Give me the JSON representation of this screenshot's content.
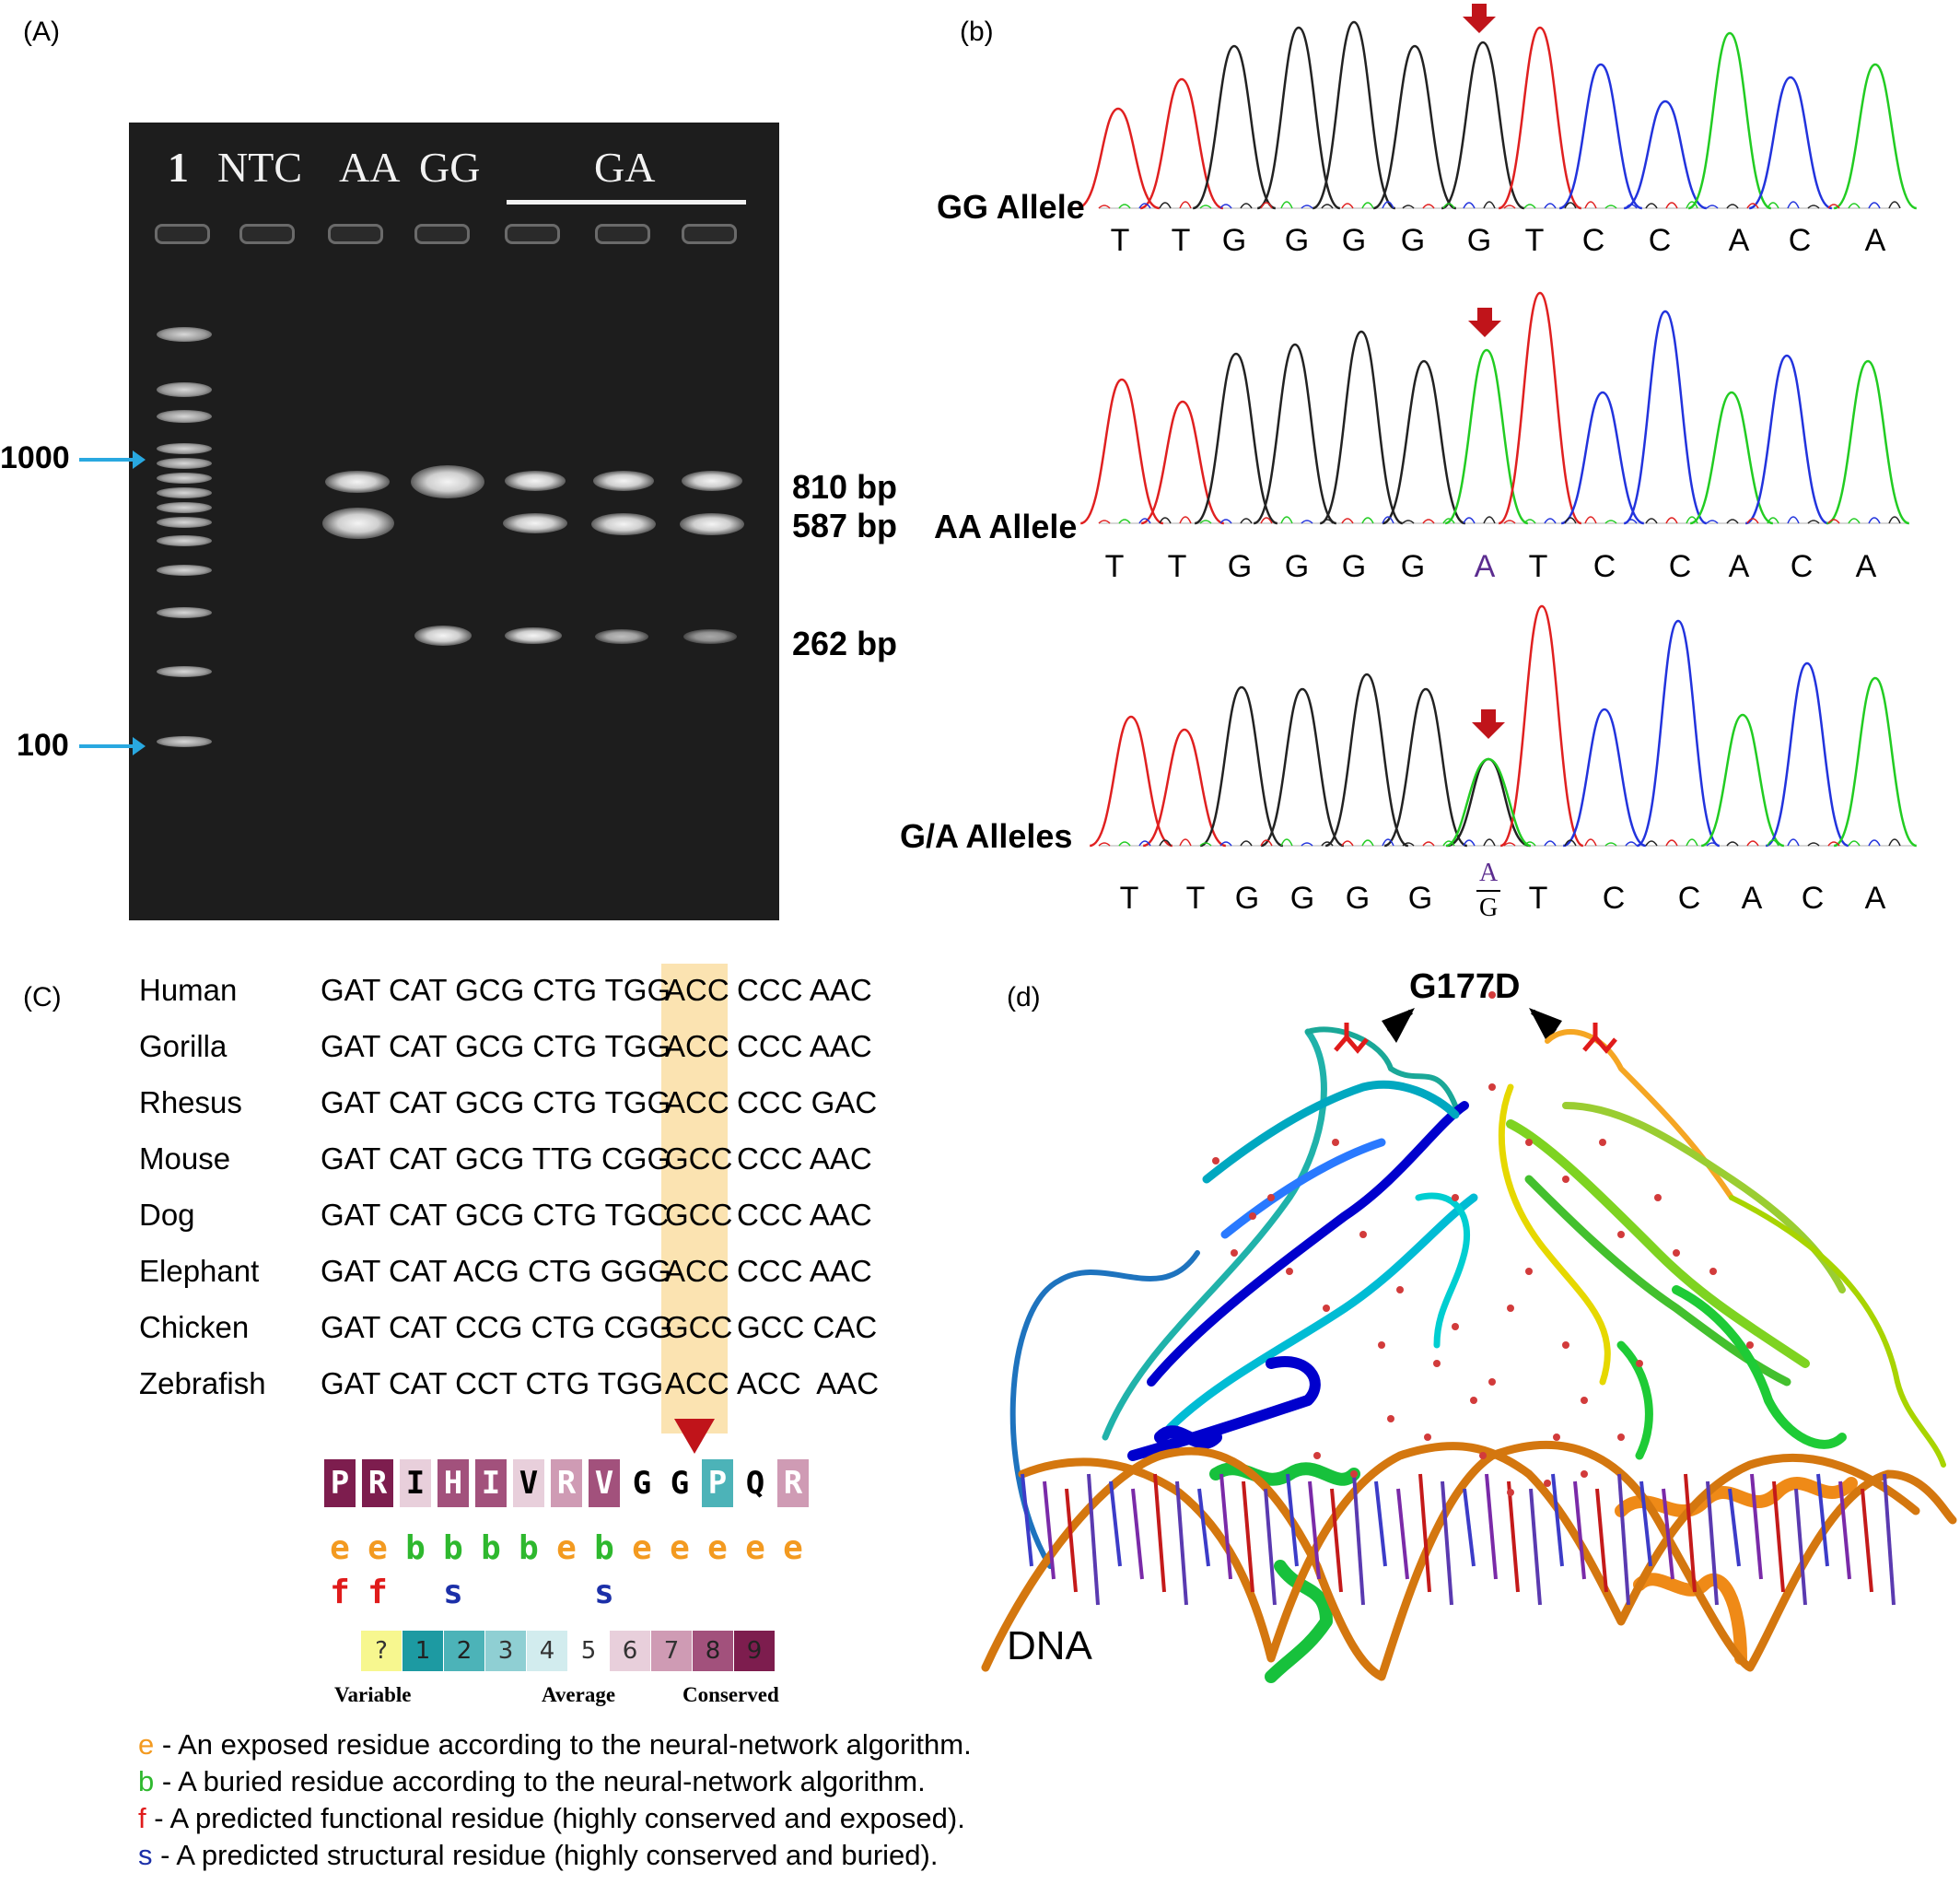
{
  "panelA": {
    "label": "(A)",
    "lanes": [
      "1",
      "NTC",
      "AA",
      "GG",
      "GA"
    ],
    "markers": [
      "1000",
      "100"
    ],
    "band_sizes": [
      "810 bp",
      "587 bp",
      "262 bp"
    ]
  },
  "panelB": {
    "label": "(b)",
    "traces": [
      {
        "allele": "GG Allele",
        "bases": [
          "T",
          "T",
          "G",
          "G",
          "G",
          "G",
          "G",
          "T",
          "C",
          "C",
          "A",
          "C",
          "A"
        ]
      },
      {
        "allele": "AA Allele",
        "bases": [
          "T",
          "T",
          "G",
          "G",
          "G",
          "G",
          "A",
          "T",
          "C",
          "C",
          "A",
          "C",
          "A"
        ]
      },
      {
        "allele": "G/A Alleles",
        "bases": [
          "T",
          "T",
          "G",
          "G",
          "G",
          "G",
          "T",
          "C",
          "C",
          "A",
          "C",
          "A"
        ],
        "het_top": "A",
        "het_bottom": "G"
      }
    ],
    "trace_colors": {
      "A": "#22cc22",
      "C": "#2233dd",
      "G": "#222222",
      "T": "#e02020"
    },
    "marker_color": "#c0141a"
  },
  "panelC": {
    "label": "(C)",
    "alignment": [
      {
        "species": "Human",
        "codons": "GAT CAT GCG CTG TGG",
        "hl": "ACC",
        "tail": "CCC AAC"
      },
      {
        "species": "Gorilla",
        "codons": "GAT CAT GCG CTG TGG",
        "hl": "ACC",
        "tail": "CCC AAC"
      },
      {
        "species": "Rhesus",
        "codons": "GAT CAT GCG CTG TGG",
        "hl": "ACC",
        "tail": "CCC GAC"
      },
      {
        "species": "Mouse",
        "codons": "GAT CAT GCG TTG CGG",
        "hl": "GCC",
        "tail": "CCC AAC"
      },
      {
        "species": "Dog",
        "codons": "GAT CAT GCG CTG TGC",
        "hl": "GCC",
        "tail": "CCC AAC"
      },
      {
        "species": "Elephant",
        "codons": "GAT CAT ACG CTG GGG",
        "hl": "ACC",
        "tail": "CCC AAC"
      },
      {
        "species": "Chicken",
        "codons": "GAT CAT CCG CTG CGG",
        "hl": "GCC",
        "tail": "GCC CAC"
      },
      {
        "species": "Zebrafish",
        "codons": "GAT CAT CCT CTG TGG",
        "hl": "ACC",
        "tail": "ACC  AAC"
      }
    ],
    "residues": [
      "P",
      "R",
      "I",
      "H",
      "I",
      "V",
      "R",
      "V",
      "G",
      "G",
      "P",
      "Q",
      "R"
    ],
    "residue_grades": [
      9,
      9,
      6,
      8,
      8,
      6,
      7,
      8,
      5,
      5,
      2,
      5,
      7
    ],
    "exposure": [
      "e",
      "e",
      "b",
      "b",
      "b",
      "b",
      "e",
      "b",
      "e",
      "e",
      "e",
      "e",
      "e"
    ],
    "function": [
      "f",
      "f",
      "",
      "s",
      "",
      "",
      "",
      "s",
      "",
      "",
      "",
      "",
      ""
    ],
    "scale": [
      "?",
      "1",
      "2",
      "3",
      "4",
      "5",
      "6",
      "7",
      "8",
      "9"
    ],
    "scale_colors": [
      "#f7f78f",
      "#1d9aa2",
      "#4cb3b8",
      "#8fcfd3",
      "#d2ecee",
      "#ffffff",
      "#e8cfdb",
      "#cf9bb4",
      "#a2517c",
      "#7d1d4e"
    ],
    "scale_labels": [
      "Variable",
      "Average",
      "Conserved"
    ],
    "legend": [
      {
        "key": "e",
        "text": " - An exposed residue according to the neural-network algorithm.",
        "color": "#f39a20"
      },
      {
        "key": "b",
        "text": " - A buried residue according to the neural-network algorithm.",
        "color": "#2eb82e"
      },
      {
        "key": "f",
        "text": " - A predicted functional residue (highly conserved and exposed).",
        "color": "#e01b1b"
      },
      {
        "key": "s",
        "text": " - A predicted structural residue (highly conserved and buried).",
        "color": "#1b2fa8"
      }
    ]
  },
  "panelD": {
    "label": "(d)",
    "mutation": "G177D",
    "dna_label": "DNA"
  }
}
